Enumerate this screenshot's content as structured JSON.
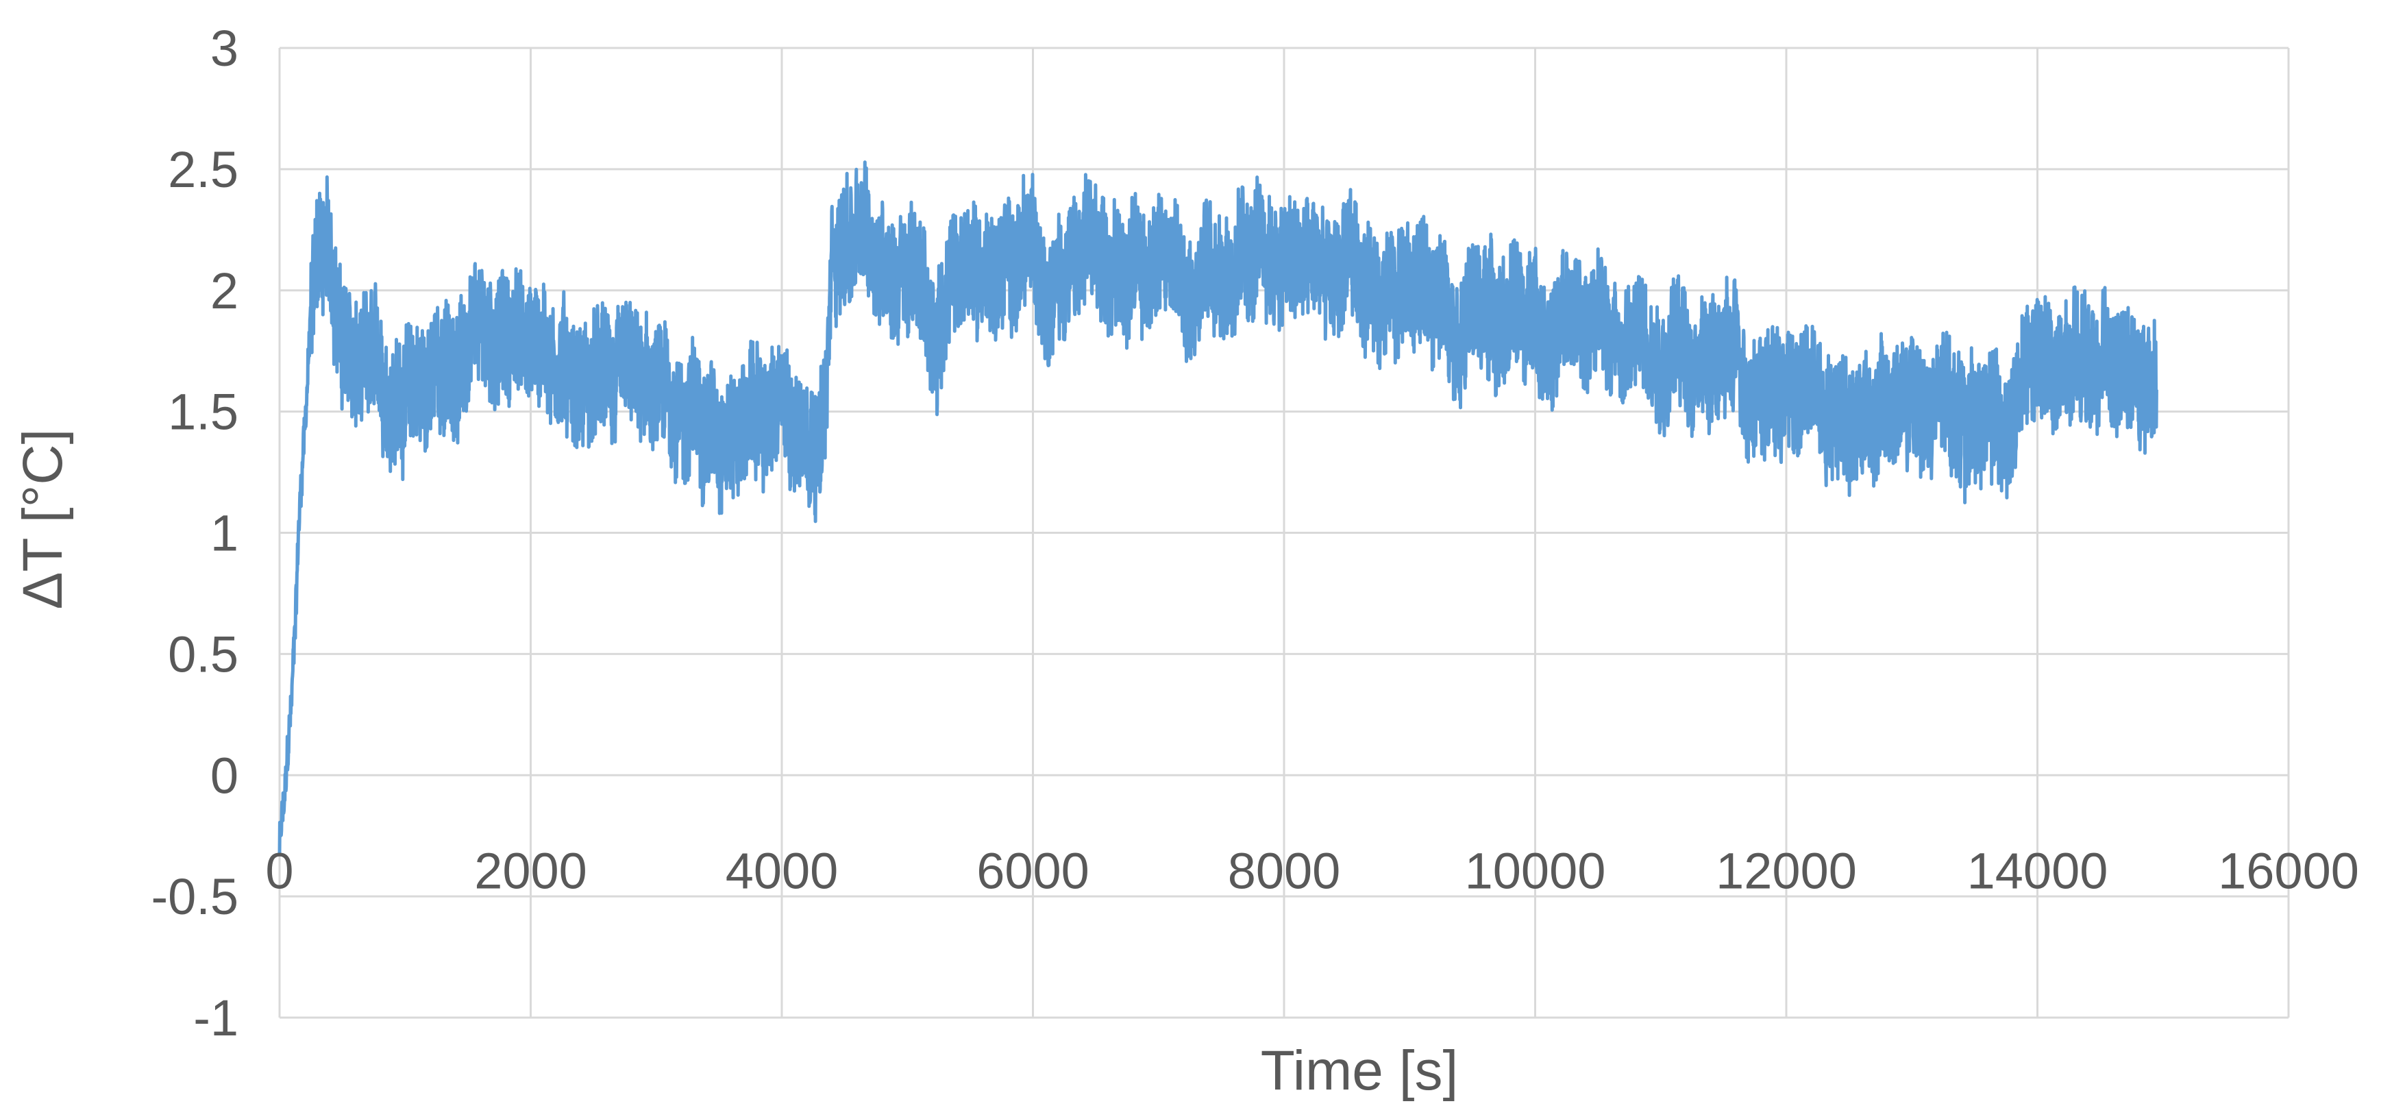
{
  "chart_data": {
    "type": "line",
    "title": "",
    "xlabel": "Time [s]",
    "ylabel": "ΔT [°C]",
    "xlim": [
      0,
      16000
    ],
    "ylim": [
      -1,
      3
    ],
    "xticks": [
      0,
      2000,
      4000,
      6000,
      8000,
      10000,
      12000,
      14000,
      16000
    ],
    "yticks": [
      -1,
      -0.5,
      0,
      0.5,
      1,
      1.5,
      2,
      2.5,
      3
    ],
    "x_tick_labels": [
      "0",
      "2000",
      "4000",
      "6000",
      "8000",
      "10000",
      "12000",
      "14000",
      "16000"
    ],
    "y_tick_labels": [
      "-1",
      "-0.5",
      "0",
      "0.5",
      "1",
      "1.5",
      "2",
      "2.5",
      "3"
    ],
    "grid": true,
    "legend": "none",
    "series_color": "#5b9bd5",
    "series": [
      {
        "name": "",
        "noise_band": 0.5,
        "x": [
          0,
          50,
          100,
          150,
          200,
          250,
          300,
          350,
          400,
          450,
          500,
          600,
          800,
          1000,
          1200,
          1400,
          1600,
          1800,
          2000,
          2200,
          2400,
          2600,
          2800,
          3000,
          3200,
          3400,
          3600,
          3800,
          4000,
          4200,
          4350,
          4400,
          4450,
          4600,
          4800,
          5000,
          5100,
          5200,
          5300,
          5400,
          5600,
          6000,
          6500,
          7000,
          7500,
          8000,
          8500,
          9000,
          9500,
          10000,
          10500,
          11000,
          11500,
          12000,
          12500,
          13000,
          13500,
          13800,
          13900,
          14000,
          14200,
          14400,
          14600,
          14800,
          14950
        ],
        "y": [
          -0.3,
          -0.1,
          0.3,
          1.0,
          1.5,
          1.9,
          2.2,
          2.15,
          2.1,
          2.0,
          1.8,
          1.65,
          1.6,
          1.6,
          1.65,
          1.7,
          1.75,
          1.8,
          1.82,
          1.75,
          1.65,
          1.6,
          1.55,
          1.52,
          1.5,
          1.5,
          1.48,
          1.47,
          1.46,
          1.48,
          1.5,
          2.1,
          2.2,
          2.2,
          2.15,
          2.1,
          2.0,
          1.8,
          2.0,
          2.05,
          2.1,
          2.12,
          2.12,
          2.12,
          2.12,
          2.1,
          2.05,
          2.02,
          1.95,
          1.88,
          1.85,
          1.8,
          1.7,
          1.6,
          1.55,
          1.5,
          1.48,
          1.47,
          1.6,
          1.65,
          1.65,
          1.65,
          1.65,
          1.65,
          1.62
        ]
      }
    ]
  }
}
